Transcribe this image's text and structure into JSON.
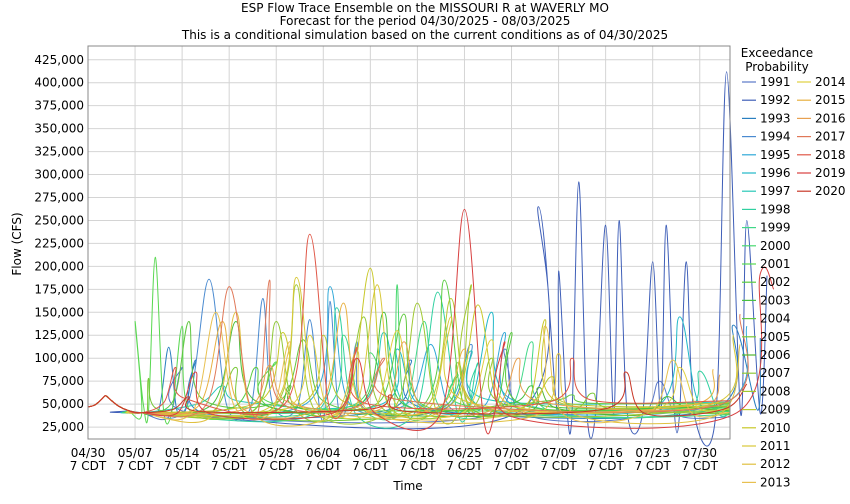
{
  "chart_data": {
    "type": "line",
    "title": "ESP Flow Trace Ensemble on the MISSOURI R at WAVERLY MO",
    "subtitle": "Forecast for the period 04/30/2025 - 08/03/2025",
    "subtitle2": "This is a conditional simulation based on the current conditions as of 04/30/2025",
    "xlabel": "Time",
    "ylabel": "Flow (CFS)",
    "x_start": "04/30/2025",
    "x_end": "08/03/2025",
    "ylim": [
      12000,
      440000
    ],
    "y_ticks": [
      "25,000",
      "50,000",
      "75,000",
      "100,000",
      "125,000",
      "150,000",
      "175,000",
      "200,000",
      "225,000",
      "250,000",
      "275,000",
      "300,000",
      "325,000",
      "350,000",
      "375,000",
      "400,000",
      "425,000"
    ],
    "x_ticks": [
      {
        "line1": "04/30",
        "line2": "7 CDT"
      },
      {
        "line1": "05/07",
        "line2": "7 CDT"
      },
      {
        "line1": "05/14",
        "line2": "7 CDT"
      },
      {
        "line1": "05/21",
        "line2": "7 CDT"
      },
      {
        "line1": "05/28",
        "line2": "7 CDT"
      },
      {
        "line1": "06/04",
        "line2": "7 CDT"
      },
      {
        "line1": "06/11",
        "line2": "7 CDT"
      },
      {
        "line1": "06/18",
        "line2": "7 CDT"
      },
      {
        "line1": "06/25",
        "line2": "7 CDT"
      },
      {
        "line1": "07/02",
        "line2": "7 CDT"
      },
      {
        "line1": "07/09",
        "line2": "7 CDT"
      },
      {
        "line1": "07/16",
        "line2": "7 CDT"
      },
      {
        "line1": "07/23",
        "line2": "7 CDT"
      },
      {
        "line1": "07/30",
        "line2": "7 CDT"
      }
    ],
    "grid": true,
    "legend_title": "Exceedance\nProbability",
    "legend_position": "right",
    "series": [
      {
        "name": "1991",
        "color": "#5a78c8",
        "peaks": [
          [
            14,
            90000
          ],
          [
            62,
            110000
          ],
          [
            85,
            75000
          ]
        ]
      },
      {
        "name": "1992",
        "color": "#3f5fb8",
        "peaks": [
          [
            67,
            265000
          ],
          [
            70,
            195000
          ],
          [
            73,
            292000
          ],
          [
            77,
            245000
          ],
          [
            79,
            250000
          ],
          [
            84,
            205000
          ],
          [
            86,
            245000
          ],
          [
            89,
            205000
          ],
          [
            95,
            412000
          ],
          [
            98,
            250000
          ],
          [
            101,
            190000
          ]
        ]
      },
      {
        "name": "1993",
        "color": "#2a7fc0",
        "peaks": [
          [
            12,
            112000
          ],
          [
            16,
            98000
          ],
          [
            48,
            98000
          ],
          [
            96,
            136000
          ],
          [
            100,
            122000
          ]
        ]
      },
      {
        "name": "1994",
        "color": "#4a8ad0",
        "peaks": [
          [
            18,
            186000
          ],
          [
            26,
            165000
          ],
          [
            33,
            142000
          ],
          [
            36,
            162000
          ],
          [
            40,
            118000
          ],
          [
            57,
            115000
          ]
        ]
      },
      {
        "name": "1995",
        "color": "#30a8d8",
        "peaks": [
          [
            36,
            178000
          ],
          [
            51,
            115000
          ],
          [
            62,
            128000
          ],
          [
            98,
            135000
          ]
        ]
      },
      {
        "name": "1996",
        "color": "#20b8c8",
        "peaks": [
          [
            46,
            110000
          ],
          [
            60,
            150000
          ],
          [
            88,
            145000
          ]
        ]
      },
      {
        "name": "1997",
        "color": "#28c8b8",
        "peaks": [
          [
            20,
            70000
          ],
          [
            44,
            128000
          ],
          [
            57,
            108000
          ]
        ]
      },
      {
        "name": "1998",
        "color": "#30d0a0",
        "peaks": [
          [
            37,
            155000
          ],
          [
            52,
            172000
          ],
          [
            58,
            95000
          ],
          [
            91,
            86000
          ]
        ]
      },
      {
        "name": "1999",
        "color": "#40d888",
        "peaks": [
          [
            38,
            125000
          ],
          [
            50,
            140000
          ],
          [
            66,
            118000
          ]
        ]
      },
      {
        "name": "2000",
        "color": "#48d870",
        "peaks": [
          [
            42,
            106000
          ],
          [
            46,
            180000
          ],
          [
            55,
            82000
          ]
        ]
      },
      {
        "name": "2001",
        "color": "#58d850",
        "peaks": [
          [
            7,
            140000
          ],
          [
            10,
            210000
          ],
          [
            14,
            135000
          ],
          [
            28,
            96000
          ]
        ]
      },
      {
        "name": "2002",
        "color": "#5acc40",
        "peaks": [
          [
            25,
            90000
          ],
          [
            53,
            185000
          ],
          [
            63,
            128000
          ]
        ]
      },
      {
        "name": "2003",
        "color": "#48c040",
        "peaks": [
          [
            22,
            140000
          ],
          [
            44,
            150000
          ],
          [
            66,
            70000
          ]
        ]
      },
      {
        "name": "2004",
        "color": "#60c840",
        "peaks": [
          [
            15,
            140000
          ],
          [
            32,
            120000
          ],
          [
            47,
            148000
          ],
          [
            72,
            60000
          ]
        ]
      },
      {
        "name": "2005",
        "color": "#78c838",
        "peaks": [
          [
            9,
            78000
          ],
          [
            22,
            90000
          ],
          [
            55,
            95000
          ],
          [
            75,
            62000
          ]
        ]
      },
      {
        "name": "2006",
        "color": "#50b830",
        "peaks": [
          [
            30,
            70000
          ],
          [
            67,
            68000
          ],
          [
            86,
            58000
          ]
        ]
      },
      {
        "name": "2007",
        "color": "#90c838",
        "peaks": [
          [
            28,
            140000
          ],
          [
            41,
            145000
          ],
          [
            60,
            100000
          ]
        ]
      },
      {
        "name": "2008",
        "color": "#a0c830",
        "peaks": [
          [
            31,
            180000
          ],
          [
            49,
            160000
          ],
          [
            57,
            180000
          ]
        ]
      },
      {
        "name": "2009",
        "color": "#b8c830",
        "peaks": [
          [
            35,
            125000
          ],
          [
            54,
            165000
          ],
          [
            69,
            80000
          ]
        ]
      },
      {
        "name": "2010",
        "color": "#c8c828",
        "peaks": [
          [
            29,
            128000
          ],
          [
            42,
            198000
          ],
          [
            58,
            158000
          ],
          [
            68,
            142000
          ]
        ]
      },
      {
        "name": "2011",
        "color": "#d8c838",
        "peaks": [
          [
            31,
            188000
          ],
          [
            43,
            180000
          ],
          [
            54,
            145000
          ],
          [
            96,
            125000
          ]
        ]
      },
      {
        "name": "2012",
        "color": "#e0c040",
        "peaks": [
          [
            22,
            150000
          ],
          [
            40,
            108000
          ],
          [
            70,
            105000
          ],
          [
            97,
            115000
          ]
        ]
      },
      {
        "name": "2013",
        "color": "#e8c050",
        "peaks": [
          [
            19,
            150000
          ],
          [
            30,
            118000
          ],
          [
            68,
            135000
          ],
          [
            87,
            98000
          ]
        ]
      },
      {
        "name": "2014",
        "color": "#e0d040",
        "peaks": [
          [
            33,
            125000
          ],
          [
            46,
            130000
          ],
          [
            60,
            120000
          ],
          [
            88,
            90000
          ]
        ]
      },
      {
        "name": "2015",
        "color": "#e8b040",
        "peaks": [
          [
            20,
            140000
          ],
          [
            38,
            160000
          ],
          [
            56,
            110000
          ],
          [
            93,
            88000
          ]
        ]
      },
      {
        "name": "2016",
        "color": "#e8a050",
        "peaks": [
          [
            27,
            92000
          ],
          [
            47,
            118000
          ],
          [
            64,
            100000
          ],
          [
            94,
            82000
          ]
        ]
      },
      {
        "name": "2017",
        "color": "#e07858",
        "peaks": [
          [
            21,
            178000
          ],
          [
            27,
            185000
          ],
          [
            44,
            100000
          ],
          [
            97,
            148000
          ]
        ]
      },
      {
        "name": "2018",
        "color": "#e05848",
        "peaks": [
          [
            13,
            90000
          ],
          [
            33,
            235000
          ],
          [
            40,
            112000
          ],
          [
            72,
            100000
          ]
        ]
      },
      {
        "name": "2019",
        "color": "#d84040",
        "peaks": [
          [
            16,
            85000
          ],
          [
            40,
            100000
          ],
          [
            56,
            262000
          ],
          [
            62,
            118000
          ],
          [
            100,
            192000
          ],
          [
            102,
            175000
          ]
        ]
      },
      {
        "name": "2020",
        "color": "#c83828",
        "peaks": [
          [
            15,
            58000
          ],
          [
            45,
            60000
          ],
          [
            80,
            85000
          ],
          [
            98,
            72000
          ]
        ]
      }
    ]
  }
}
